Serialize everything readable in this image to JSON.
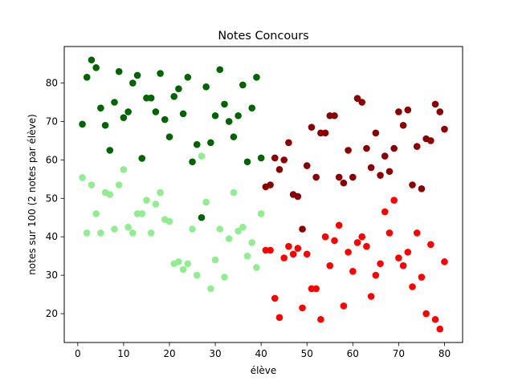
{
  "chart_data": {
    "type": "scatter",
    "title": "Notes Concours",
    "xlabel": "élève",
    "ylabel": "notes sur 100 (2 notes par élève)",
    "xlim": [
      -2.95,
      83.95
    ],
    "ylim": [
      12.5,
      89.5
    ],
    "xticks": [
      0,
      10,
      20,
      30,
      40,
      50,
      60,
      70,
      80
    ],
    "yticks": [
      20,
      30,
      40,
      50,
      60,
      70,
      80
    ],
    "grid": false,
    "series": [
      {
        "color": "#006400",
        "points": [
          [
            1,
            69.3
          ],
          [
            2,
            81.5
          ],
          [
            3,
            86
          ],
          [
            4,
            84
          ],
          [
            5,
            73.5
          ],
          [
            6,
            69
          ],
          [
            7,
            62.5
          ],
          [
            8,
            75
          ],
          [
            9,
            83
          ],
          [
            10,
            71
          ],
          [
            11,
            72.5
          ],
          [
            12,
            80
          ],
          [
            13,
            82
          ],
          [
            14,
            60.4
          ],
          [
            15,
            76.1
          ],
          [
            16,
            76.1
          ],
          [
            17,
            72.5
          ],
          [
            18,
            82.5
          ],
          [
            19,
            70.5
          ],
          [
            20,
            66
          ],
          [
            21,
            76.5
          ],
          [
            22,
            78.5
          ],
          [
            23,
            72
          ],
          [
            24,
            81.5
          ],
          [
            25,
            59.5
          ],
          [
            26,
            64
          ],
          [
            27,
            45
          ],
          [
            28,
            79
          ],
          [
            29,
            64.5
          ],
          [
            30,
            71.5
          ],
          [
            31,
            83.5
          ],
          [
            32,
            74.5
          ],
          [
            33,
            70
          ],
          [
            34,
            66
          ],
          [
            35,
            71.5
          ],
          [
            36,
            79.5
          ],
          [
            37,
            59.5
          ],
          [
            38,
            73.5
          ],
          [
            39,
            81.5
          ],
          [
            40,
            60.5
          ]
        ]
      },
      {
        "color": "#90EE90",
        "points": [
          [
            1,
            55.4
          ],
          [
            2,
            41
          ],
          [
            3,
            53.5
          ],
          [
            4,
            46
          ],
          [
            5,
            41
          ],
          [
            6,
            51.5
          ],
          [
            7,
            51
          ],
          [
            8,
            42
          ],
          [
            9,
            53.5
          ],
          [
            10,
            57.5
          ],
          [
            11,
            42.5
          ],
          [
            12,
            41
          ],
          [
            13,
            46
          ],
          [
            14,
            46
          ],
          [
            15,
            49.5
          ],
          [
            16,
            41
          ],
          [
            17,
            48.5
          ],
          [
            18,
            51.5
          ],
          [
            19,
            44.5
          ],
          [
            20,
            44
          ],
          [
            21,
            33
          ],
          [
            22,
            33.5
          ],
          [
            23,
            31.5
          ],
          [
            24,
            33
          ],
          [
            25,
            42
          ],
          [
            26,
            30
          ],
          [
            27,
            61
          ],
          [
            28,
            49
          ],
          [
            29,
            26.5
          ],
          [
            30,
            34
          ],
          [
            31,
            42
          ],
          [
            32,
            29.5
          ],
          [
            33,
            39.5
          ],
          [
            34,
            51.5
          ],
          [
            35,
            41.5
          ],
          [
            36,
            42.5
          ],
          [
            37,
            35
          ],
          [
            38,
            38.5
          ],
          [
            39,
            32
          ],
          [
            40,
            46
          ]
        ]
      },
      {
        "color": "#8B0000",
        "points": [
          [
            41,
            53
          ],
          [
            42,
            53.5
          ],
          [
            43,
            60.5
          ],
          [
            44,
            57.5
          ],
          [
            45,
            60
          ],
          [
            46,
            64.5
          ],
          [
            47,
            51
          ],
          [
            48,
            50.5
          ],
          [
            49,
            42
          ],
          [
            50,
            58.5
          ],
          [
            51,
            68.5
          ],
          [
            52,
            55.5
          ],
          [
            53,
            67
          ],
          [
            54,
            67
          ],
          [
            55,
            71.5
          ],
          [
            56,
            71.5
          ],
          [
            57,
            55.5
          ],
          [
            58,
            54
          ],
          [
            59,
            62.5
          ],
          [
            60,
            55.5
          ],
          [
            61,
            76
          ],
          [
            62,
            75
          ],
          [
            63,
            63
          ],
          [
            64,
            58
          ],
          [
            65,
            67
          ],
          [
            66,
            56
          ],
          [
            67,
            61
          ],
          [
            68,
            57
          ],
          [
            69,
            63
          ],
          [
            70,
            72.5
          ],
          [
            71,
            69
          ],
          [
            72,
            73
          ],
          [
            73,
            53.5
          ],
          [
            74,
            63.5
          ],
          [
            75,
            52.5
          ],
          [
            76,
            65.5
          ],
          [
            77,
            65
          ],
          [
            78,
            74.5
          ],
          [
            79,
            72.5
          ],
          [
            80,
            68
          ]
        ]
      },
      {
        "color": "#FF0000",
        "points": [
          [
            41,
            36.5
          ],
          [
            42,
            36.5
          ],
          [
            43,
            24
          ],
          [
            44,
            19
          ],
          [
            45,
            34.5
          ],
          [
            46,
            37.5
          ],
          [
            47,
            35.5
          ],
          [
            48,
            37
          ],
          [
            49,
            21.5
          ],
          [
            50,
            35.5
          ],
          [
            51,
            26.5
          ],
          [
            52,
            26.5
          ],
          [
            53,
            18.5
          ],
          [
            54,
            40
          ],
          [
            55,
            32.5
          ],
          [
            56,
            39
          ],
          [
            57,
            43
          ],
          [
            58,
            22
          ],
          [
            59,
            36
          ],
          [
            60,
            31
          ],
          [
            61,
            38.5
          ],
          [
            62,
            40
          ],
          [
            63,
            37.5
          ],
          [
            64,
            24.5
          ],
          [
            65,
            30
          ],
          [
            66,
            33
          ],
          [
            67,
            46.5
          ],
          [
            68,
            41
          ],
          [
            69,
            49.5
          ],
          [
            70,
            34.5
          ],
          [
            71,
            32.5
          ],
          [
            72,
            36
          ],
          [
            73,
            27
          ],
          [
            74,
            41
          ],
          [
            75,
            29.5
          ],
          [
            76,
            20
          ],
          [
            77,
            38
          ],
          [
            78,
            18.5
          ],
          [
            79,
            16
          ],
          [
            80,
            33.5
          ]
        ]
      }
    ]
  }
}
